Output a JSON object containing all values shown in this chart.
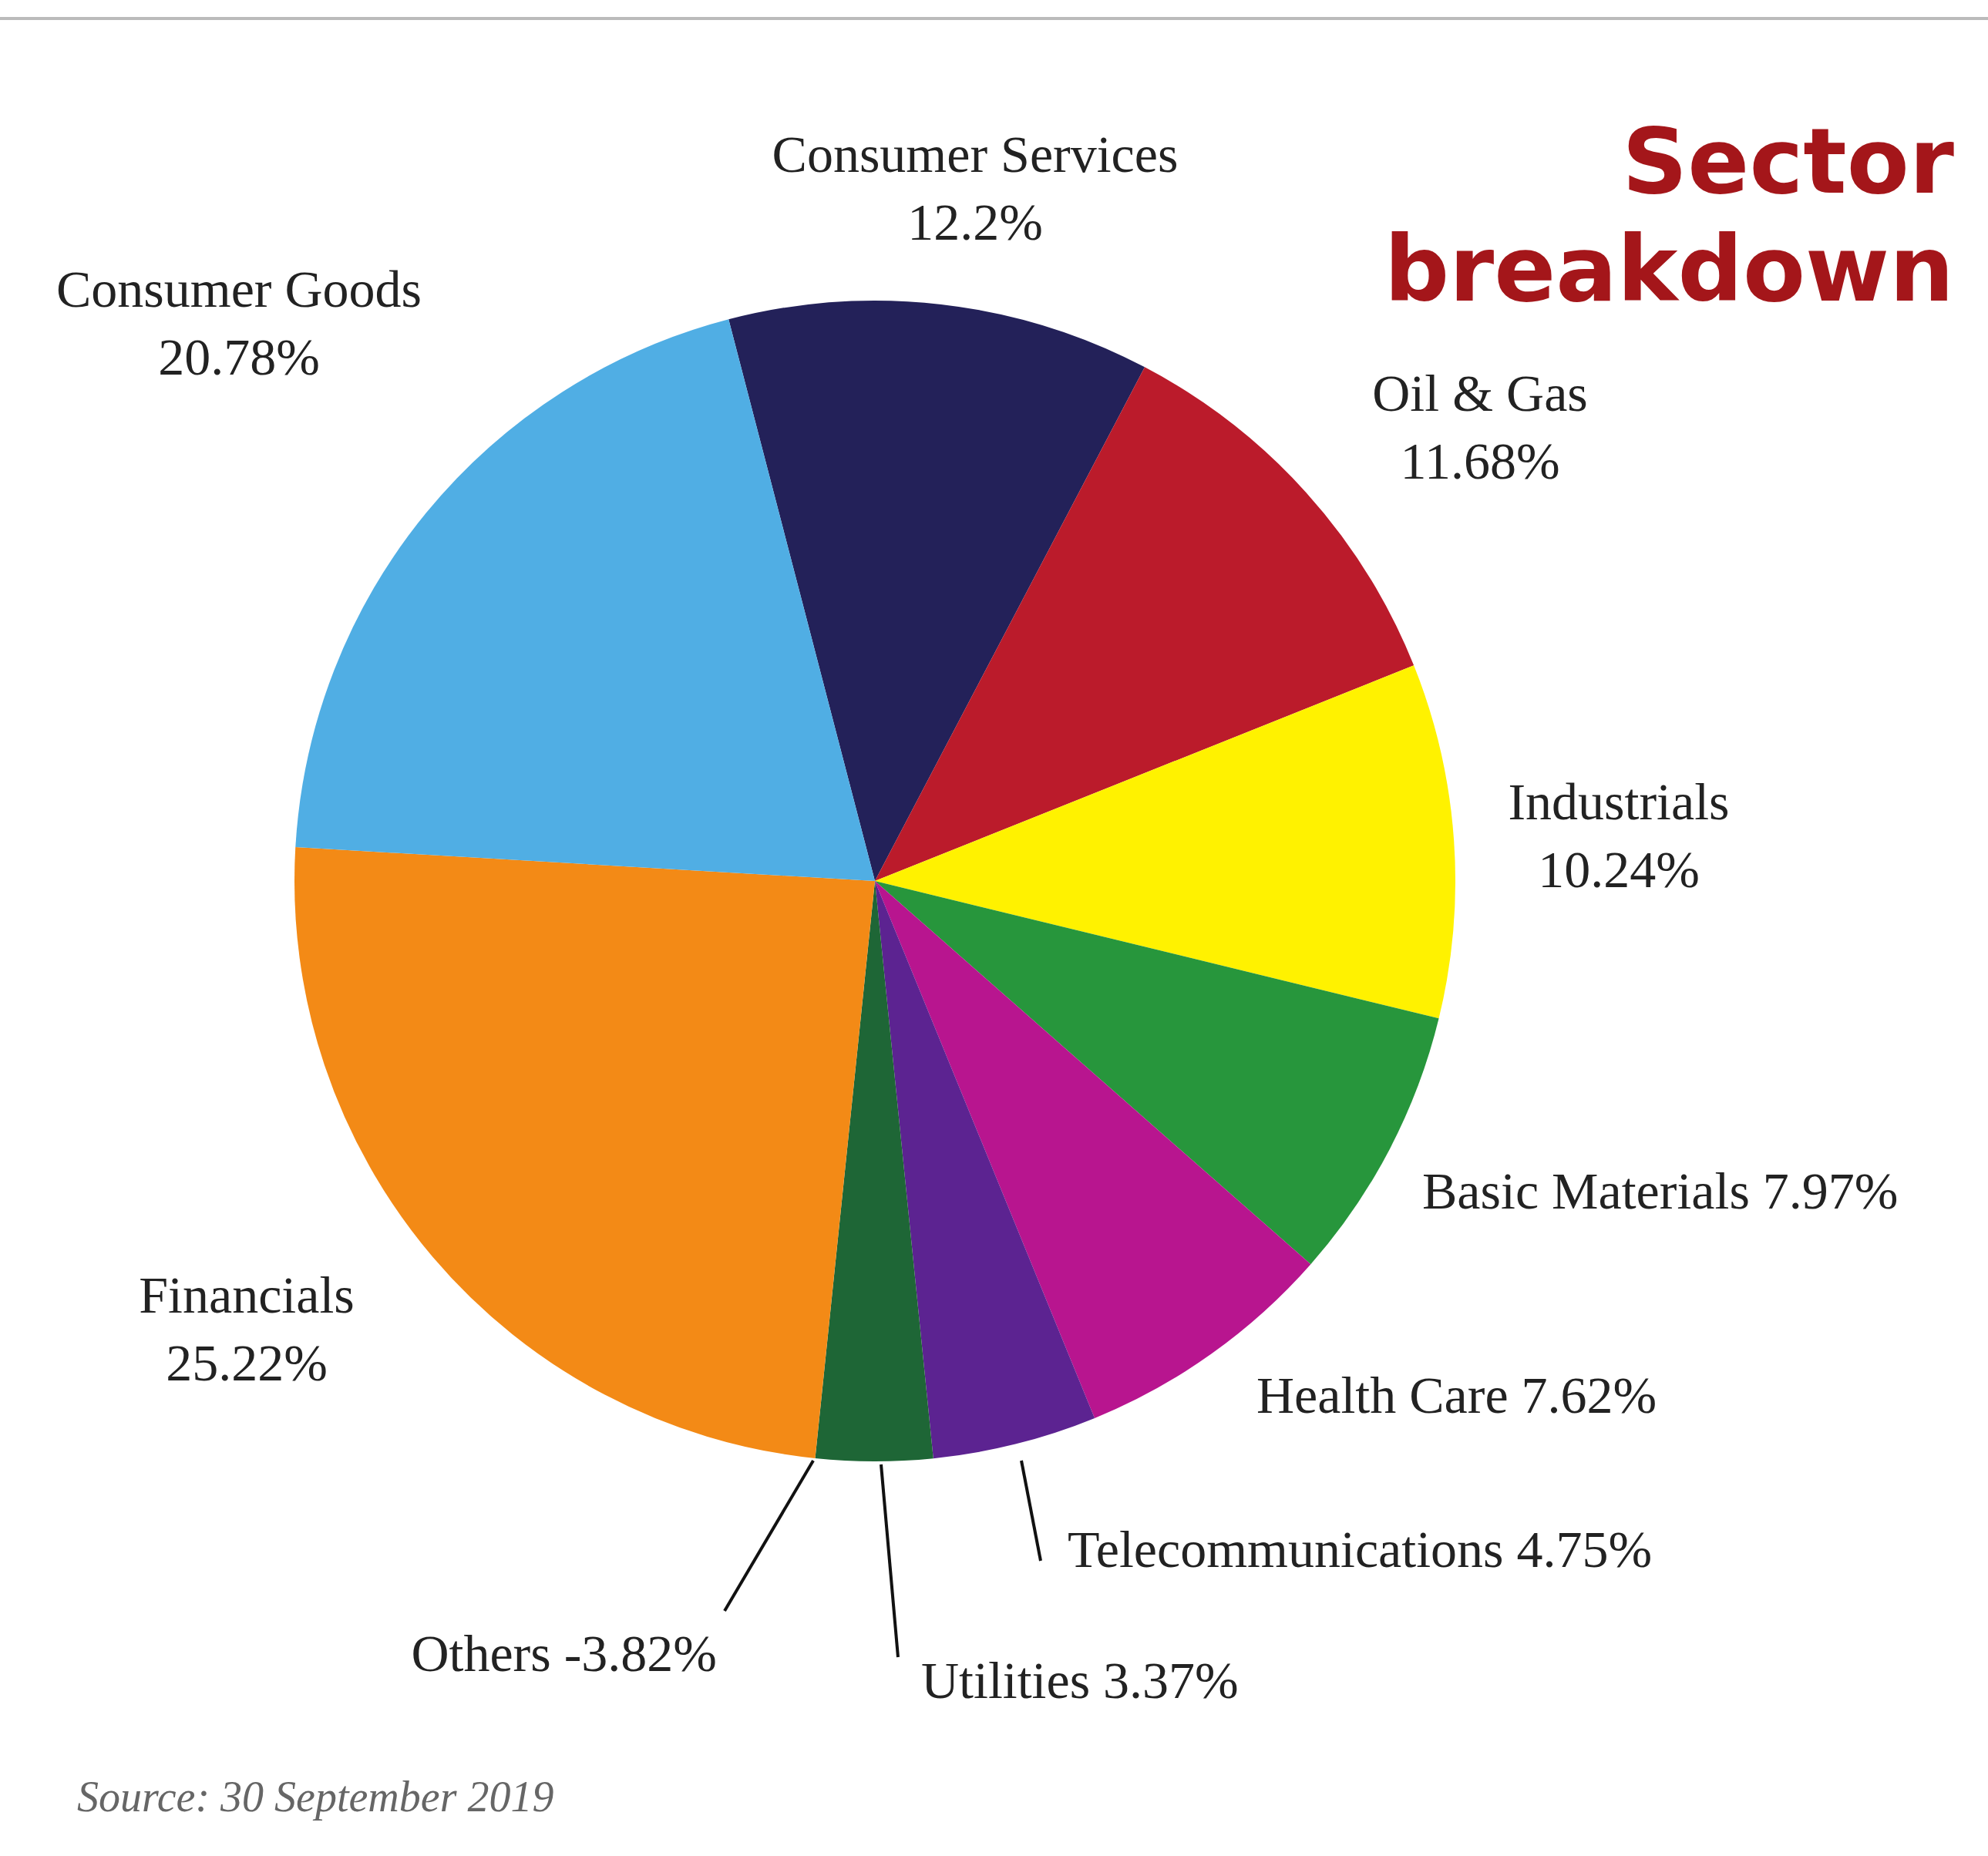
{
  "chart_data": {
    "type": "pie",
    "title": "Sector breakdown",
    "categories": [
      "Consumer Services",
      "Oil & Gas",
      "Industrials",
      "Basic Materials",
      "Health Care",
      "Telecommunications",
      "Utilities",
      "Others",
      "Financials",
      "Consumer Goods"
    ],
    "values": [
      12.2,
      11.68,
      10.24,
      7.97,
      7.62,
      4.75,
      3.37,
      null,
      25.22,
      20.78
    ],
    "colors": [
      "#232159",
      "#bb1b2b",
      "#fff200",
      "#27963c",
      "#b8158f",
      "#5c2391",
      "#1e6636",
      null,
      "#f38a16",
      "#50aee4"
    ],
    "value_labels": [
      "12.2%",
      "11.68%",
      "10.24%",
      "7.97%",
      "7.62%",
      "4.75%",
      "3.37%",
      "-3.82%",
      "25.22%",
      "20.78%"
    ],
    "annotations": [
      "Source: 30 September 2019"
    ],
    "legend": false
  }
}
